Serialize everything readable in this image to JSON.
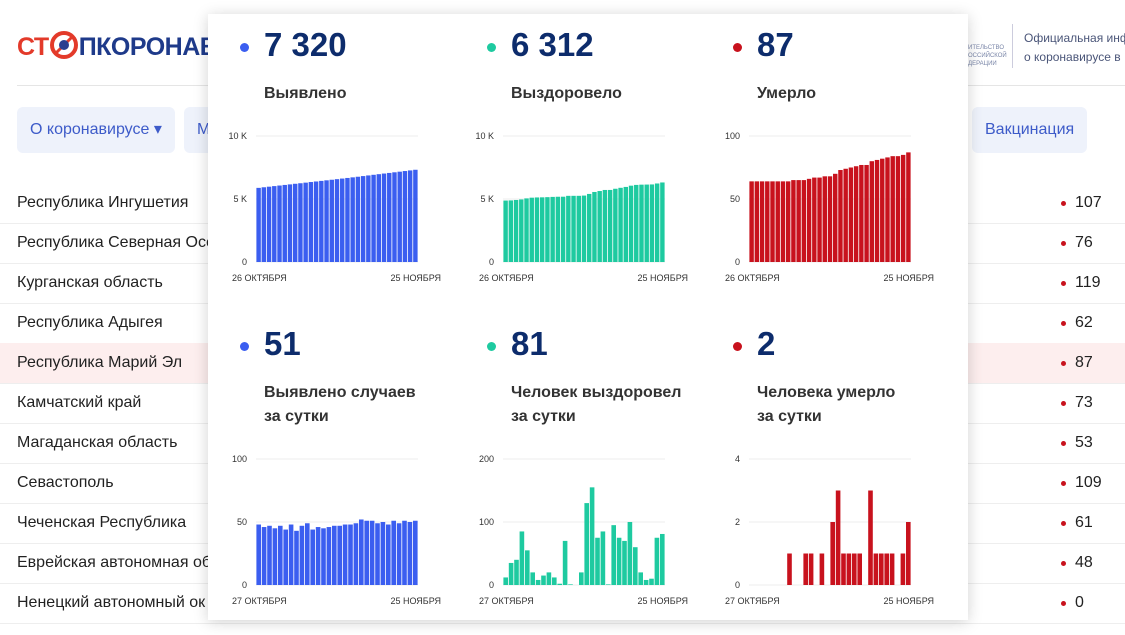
{
  "header": {
    "logo_left": "СТ",
    "logo_right": "ПКОРОНАВИ",
    "crest_lines": [
      "ИТЕЛЬСТВО",
      "ОССИЙСКОЙ",
      "ДЕРАЦИИ"
    ],
    "info_lines": [
      "Официальная инф",
      "о коронавирусе в"
    ]
  },
  "nav": [
    "О коронавирусе ▾",
    "М",
    "Вакцинация"
  ],
  "table": {
    "rows": [
      [
        "Республика Ингушетия",
        107
      ],
      [
        "Республика Северная Осе",
        76
      ],
      [
        "Курганская область",
        119
      ],
      [
        "Республика Адыгея",
        62
      ],
      [
        "Республика Марий Эл",
        87
      ],
      [
        "Камчатский край",
        73
      ],
      [
        "Магаданская область",
        53
      ],
      [
        "Севастополь",
        109
      ],
      [
        "Чеченская Республика",
        61
      ],
      [
        "Еврейская автономная об",
        48
      ],
      [
        "Ненецкий автономный ок",
        0
      ]
    ]
  },
  "chart_data": [
    {
      "type": "bar",
      "headline": "7 320",
      "title": [
        "Выявлено"
      ],
      "color": "#3b5ef0",
      "ylim": [
        0,
        10000
      ],
      "yticks": [
        0,
        {
          "value": 5000,
          "label": "5 K"
        },
        {
          "value": 10000,
          "label": "10 K"
        }
      ],
      "grid": true,
      "categories": [
        "26 ОКТЯБРЯ",
        null,
        null,
        null,
        null,
        null,
        null,
        null,
        null,
        null,
        null,
        null,
        null,
        null,
        null,
        null,
        null,
        null,
        null,
        null,
        null,
        null,
        null,
        null,
        null,
        null,
        null,
        null,
        null,
        null,
        "25 НОЯБРЯ"
      ],
      "values": [
        5883,
        5931,
        5977,
        6024,
        6069,
        6116,
        6160,
        6208,
        6251,
        6298,
        6347,
        6391,
        6437,
        6482,
        6528,
        6575,
        6622,
        6670,
        6718,
        6767,
        6819,
        6870,
        6921,
        6970,
        7020,
        7068,
        7119,
        7168,
        7219,
        7269,
        7320
      ]
    },
    {
      "type": "bar",
      "headline": "6 312",
      "title": [
        "Выздоровело"
      ],
      "color": "#1ecaa0",
      "ylim": [
        0,
        10000
      ],
      "yticks": [
        0,
        {
          "value": 5000,
          "label": "5 K"
        },
        {
          "value": 10000,
          "label": "10 K"
        }
      ],
      "grid": true,
      "categories": [
        "26 ОКТЯБРЯ",
        null,
        null,
        null,
        null,
        null,
        null,
        null,
        null,
        null,
        null,
        null,
        null,
        null,
        null,
        null,
        null,
        null,
        null,
        null,
        null,
        null,
        null,
        null,
        null,
        null,
        null,
        null,
        null,
        null,
        "25 НОЯБРЯ"
      ],
      "values": [
        4877,
        4889,
        4924,
        4964,
        5049,
        5104,
        5124,
        5132,
        5147,
        5167,
        5179,
        5181,
        5251,
        5252,
        5252,
        5272,
        5402,
        5557,
        5632,
        5717,
        5718,
        5813,
        5888,
        5958,
        6058,
        6118,
        6138,
        6146,
        6156,
        6231,
        6312
      ]
    },
    {
      "type": "bar",
      "headline": "87",
      "title": [
        "Умерло"
      ],
      "color": "#c8121d",
      "ylim": [
        0,
        100
      ],
      "yticks": [
        0,
        50,
        100
      ],
      "grid": true,
      "categories": [
        "26 ОКТЯБРЯ",
        null,
        null,
        null,
        null,
        null,
        null,
        null,
        null,
        null,
        null,
        null,
        null,
        null,
        null,
        null,
        null,
        null,
        null,
        null,
        null,
        null,
        null,
        null,
        null,
        null,
        null,
        null,
        null,
        null,
        "25 НОЯБРЯ"
      ],
      "values": [
        64,
        64,
        64,
        64,
        64,
        64,
        64,
        64,
        65,
        65,
        65,
        66,
        67,
        67,
        68,
        68,
        70,
        73,
        74,
        75,
        76,
        77,
        77,
        80,
        81,
        82,
        83,
        84,
        84,
        85,
        87
      ]
    },
    {
      "type": "bar",
      "headline": "51",
      "title": [
        "Выявлено случаев",
        "за сутки"
      ],
      "color": "#3b5ef0",
      "ylim": [
        0,
        100
      ],
      "yticks": [
        0,
        50,
        100
      ],
      "grid": true,
      "categories": [
        "27 ОКТЯБРЯ",
        null,
        null,
        null,
        null,
        null,
        null,
        null,
        null,
        null,
        null,
        null,
        null,
        null,
        null,
        null,
        null,
        null,
        null,
        null,
        null,
        null,
        null,
        null,
        null,
        null,
        null,
        null,
        null,
        "25 НОЯБРЯ"
      ],
      "values": [
        48,
        46,
        47,
        45,
        47,
        44,
        48,
        43,
        47,
        49,
        44,
        46,
        45,
        46,
        47,
        47,
        48,
        48,
        49,
        52,
        51,
        51,
        49,
        50,
        48,
        51,
        49,
        51,
        50,
        51
      ]
    },
    {
      "type": "bar",
      "headline": "81",
      "title": [
        "Человек выздоровел",
        "за сутки"
      ],
      "color": "#1ecaa0",
      "ylim": [
        0,
        200
      ],
      "yticks": [
        0,
        100,
        200
      ],
      "grid": true,
      "categories": [
        "27 ОКТЯБРЯ",
        null,
        null,
        null,
        null,
        null,
        null,
        null,
        null,
        null,
        null,
        null,
        null,
        null,
        null,
        null,
        null,
        null,
        null,
        null,
        null,
        null,
        null,
        null,
        null,
        null,
        null,
        null,
        null,
        "25 НОЯБРЯ"
      ],
      "values": [
        12,
        35,
        40,
        85,
        55,
        20,
        8,
        15,
        20,
        12,
        2,
        70,
        1,
        0,
        20,
        130,
        155,
        75,
        85,
        1,
        95,
        75,
        70,
        100,
        60,
        20,
        8,
        10,
        75,
        81
      ]
    },
    {
      "type": "bar",
      "headline": "2",
      "title": [
        "Человека умерло",
        "за сутки"
      ],
      "color": "#c8121d",
      "ylim": [
        0,
        4
      ],
      "yticks": [
        0,
        2,
        4
      ],
      "grid": true,
      "categories": [
        "27 ОКТЯБРЯ",
        null,
        null,
        null,
        null,
        null,
        null,
        null,
        null,
        null,
        null,
        null,
        null,
        null,
        null,
        null,
        null,
        null,
        null,
        null,
        null,
        null,
        null,
        null,
        null,
        null,
        null,
        null,
        null,
        "25 НОЯБРЯ"
      ],
      "values": [
        0,
        0,
        0,
        0,
        0,
        0,
        0,
        1,
        0,
        0,
        1,
        1,
        0,
        1,
        0,
        2,
        3,
        1,
        1,
        1,
        1,
        0,
        3,
        1,
        1,
        1,
        1,
        0,
        1,
        2
      ]
    }
  ]
}
